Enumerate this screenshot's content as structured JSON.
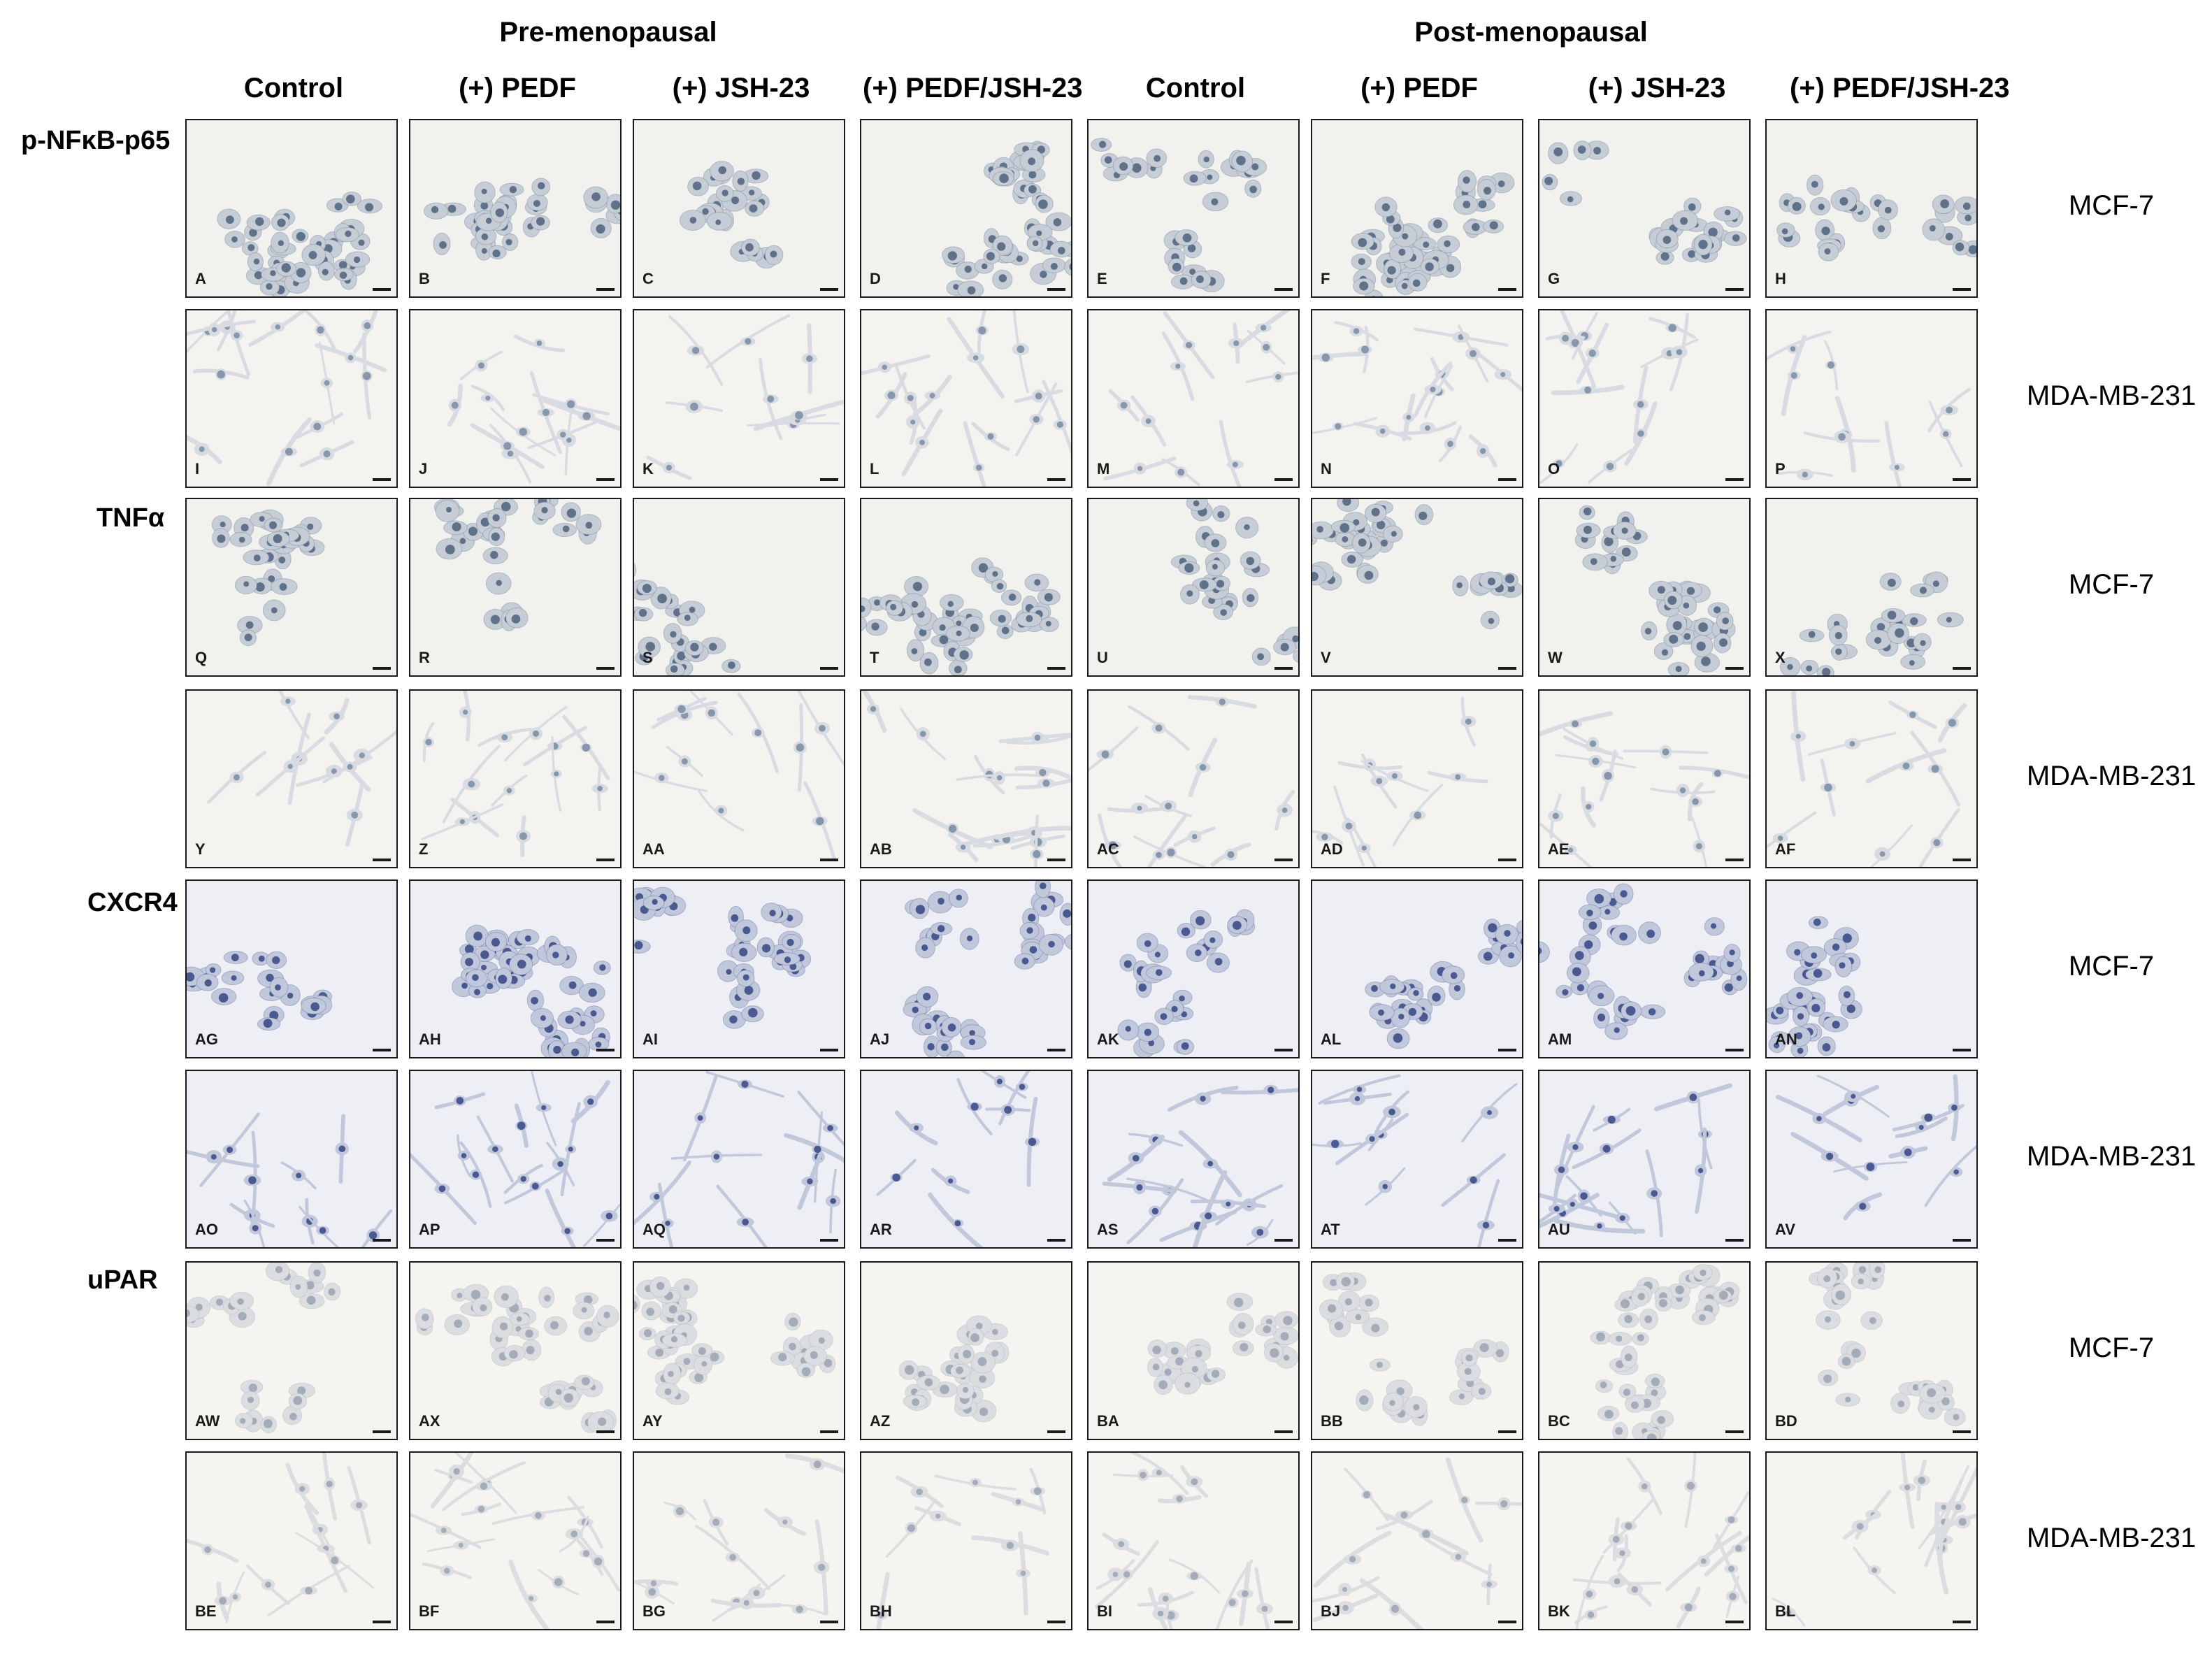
{
  "groups": [
    {
      "title": "Pre-menopausal"
    },
    {
      "title": "Post-menopausal"
    }
  ],
  "column_headers": [
    "Control",
    "(+) PEDF",
    "(+) JSH-23",
    "(+) PEDF/JSH-23",
    "Control",
    "(+) PEDF",
    "(+) JSH-23",
    "(+) PEDF/JSH-23"
  ],
  "markers": [
    {
      "name": "p-NFκB-p65"
    },
    {
      "name": "TNFα"
    },
    {
      "name": "CXCR4"
    },
    {
      "name": "uPAR"
    }
  ],
  "rows": [
    {
      "cell_line": "MCF-7",
      "type": "mcf7",
      "stain": "dark",
      "panels": [
        "A",
        "B",
        "C",
        "D",
        "E",
        "F",
        "G",
        "H"
      ]
    },
    {
      "cell_line": "MDA-MB-231",
      "type": "mda",
      "stain": "light",
      "panels": [
        "I",
        "J",
        "K",
        "L",
        "M",
        "N",
        "O",
        "P"
      ]
    },
    {
      "cell_line": "MCF-7",
      "type": "mcf7",
      "stain": "dark",
      "panels": [
        "Q",
        "R",
        "S",
        "T",
        "U",
        "V",
        "W",
        "X"
      ]
    },
    {
      "cell_line": "MDA-MB-231",
      "type": "mda",
      "stain": "light",
      "panels": [
        "Y",
        "Z",
        "AA",
        "AB",
        "AC",
        "AD",
        "AE",
        "AF"
      ]
    },
    {
      "cell_line": "MCF-7",
      "type": "mcf7",
      "stain": "blue",
      "panels": [
        "AG",
        "AH",
        "AI",
        "AJ",
        "AK",
        "AL",
        "AM",
        "AN"
      ]
    },
    {
      "cell_line": "MDA-MB-231",
      "type": "mda",
      "stain": "blue",
      "panels": [
        "AO",
        "AP",
        "AQ",
        "AR",
        "AS",
        "AT",
        "AU",
        "AV"
      ]
    },
    {
      "cell_line": "MCF-7",
      "type": "mcf7",
      "stain": "faint",
      "panels": [
        "AW",
        "AX",
        "AY",
        "AZ",
        "BA",
        "BB",
        "BC",
        "BD"
      ]
    },
    {
      "cell_line": "MDA-MB-231",
      "type": "mda",
      "stain": "faint",
      "panels": [
        "BE",
        "BF",
        "BG",
        "BH",
        "BI",
        "BJ",
        "BK",
        "BL"
      ]
    }
  ],
  "stain_colors": {
    "dark": {
      "background": "#f1f1ee",
      "cytoplasm": "#c6cdd6",
      "nucleus": "#5f7289"
    },
    "light": {
      "background": "#f4f3f0",
      "cytoplasm": "#d8dce2",
      "nucleus": "#8797ab"
    },
    "blue": {
      "background": "#eeeff5",
      "cytoplasm": "#c2c8dc",
      "nucleus": "#4a5990"
    },
    "faint": {
      "background": "#f5f4f1",
      "cytoplasm": "#dcdde0",
      "nucleus": "#a3acb8"
    }
  }
}
